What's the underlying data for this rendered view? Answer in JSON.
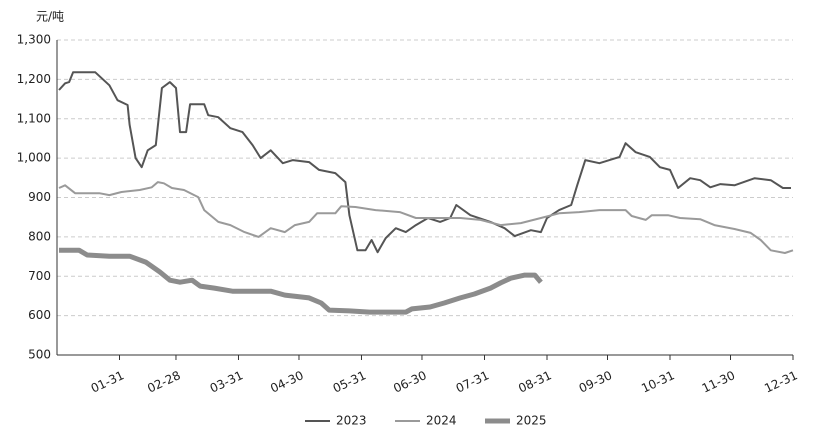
{
  "chart_data": {
    "type": "line",
    "y_label": "元/吨",
    "xlim": [
      0,
      365
    ],
    "xticks": [
      {
        "value": 31,
        "label": "01-31"
      },
      {
        "value": 59,
        "label": "02-28"
      },
      {
        "value": 90,
        "label": "03-31"
      },
      {
        "value": 120,
        "label": "04-30"
      },
      {
        "value": 151,
        "label": "05-31"
      },
      {
        "value": 181,
        "label": "06-30"
      },
      {
        "value": 212,
        "label": "07-31"
      },
      {
        "value": 243,
        "label": "08-31"
      },
      {
        "value": 273,
        "label": "09-30"
      },
      {
        "value": 304,
        "label": "10-31"
      },
      {
        "value": 334,
        "label": "11-30"
      },
      {
        "value": 365,
        "label": "12-31"
      }
    ],
    "ylim": [
      500,
      1300
    ],
    "yticks": [
      500,
      600,
      700,
      800,
      900,
      {
        "value": 1000,
        "label": "1,000"
      },
      {
        "value": 1100,
        "label": "1,100"
      },
      {
        "value": 1200,
        "label": "1,200"
      },
      {
        "value": 1300,
        "label": "1,300"
      }
    ],
    "grid": true,
    "series": [
      {
        "name": "2023",
        "color": "#555555",
        "width": 2,
        "x": [
          1,
          4,
          6,
          8,
          19,
          26,
          30,
          35,
          36,
          39,
          42,
          45,
          49,
          52,
          56,
          59,
          61,
          64,
          66,
          73,
          75,
          80,
          86,
          92,
          97,
          101,
          106,
          112,
          117,
          125,
          130,
          138,
          143,
          145,
          149,
          153,
          156,
          159,
          163,
          168,
          173,
          178,
          184,
          190,
          195,
          198,
          205,
          215,
          222,
          227,
          235,
          240,
          243,
          249,
          255,
          258,
          262,
          269,
          279,
          282,
          287,
          294,
          299,
          304,
          308,
          314,
          319,
          324,
          329,
          336,
          346,
          354,
          360,
          364
        ],
        "values": [
          1173,
          1190,
          1193,
          1218,
          1218,
          1185,
          1147,
          1135,
          1085,
          1000,
          977,
          1020,
          1033,
          1178,
          1193,
          1178,
          1066,
          1066,
          1137,
          1137,
          1109,
          1104,
          1076,
          1066,
          1033,
          1000,
          1020,
          987,
          995,
          990,
          970,
          962,
          939,
          855,
          766,
          766,
          792,
          761,
          797,
          822,
          812,
          830,
          848,
          838,
          848,
          881,
          855,
          838,
          822,
          802,
          817,
          812,
          848,
          868,
          881,
          931,
          995,
          987,
          1003,
          1038,
          1015,
          1003,
          977,
          970,
          924,
          949,
          944,
          926,
          934,
          931,
          949,
          944,
          924,
          924
        ]
      },
      {
        "name": "2024",
        "color": "#9a9a9a",
        "width": 2,
        "x": [
          1,
          4,
          9,
          21,
          26,
          32,
          41,
          47,
          50,
          53,
          57,
          63,
          70,
          73,
          80,
          86,
          93,
          100,
          106,
          113,
          118,
          125,
          129,
          138,
          141,
          148,
          158,
          170,
          178,
          190,
          200,
          210,
          220,
          230,
          240,
          249,
          259,
          269,
          282,
          285,
          292,
          295,
          303,
          309,
          319,
          326,
          336,
          344,
          349,
          354,
          361,
          365
        ],
        "values": [
          924,
          931,
          911,
          911,
          906,
          914,
          919,
          926,
          939,
          936,
          924,
          919,
          901,
          868,
          838,
          830,
          812,
          800,
          822,
          812,
          830,
          838,
          860,
          860,
          878,
          876,
          868,
          863,
          848,
          848,
          848,
          843,
          830,
          835,
          848,
          860,
          863,
          868,
          868,
          853,
          843,
          855,
          855,
          848,
          845,
          830,
          820,
          810,
          792,
          766,
          759,
          766
        ]
      },
      {
        "name": "2025",
        "color": "#8c8c8c",
        "width": 5,
        "x": [
          1,
          11,
          15,
          26,
          36,
          44,
          51,
          56,
          61,
          67,
          71,
          78,
          87,
          106,
          113,
          125,
          131,
          135,
          145,
          155,
          173,
          176,
          185,
          192,
          200,
          207,
          215,
          220,
          225,
          232,
          237,
          240
        ],
        "values": [
          766,
          766,
          754,
          751,
          751,
          736,
          711,
          690,
          685,
          690,
          675,
          670,
          662,
          662,
          652,
          645,
          632,
          614,
          612,
          609,
          609,
          617,
          622,
          632,
          645,
          655,
          670,
          683,
          695,
          703,
          703,
          685
        ]
      }
    ]
  }
}
